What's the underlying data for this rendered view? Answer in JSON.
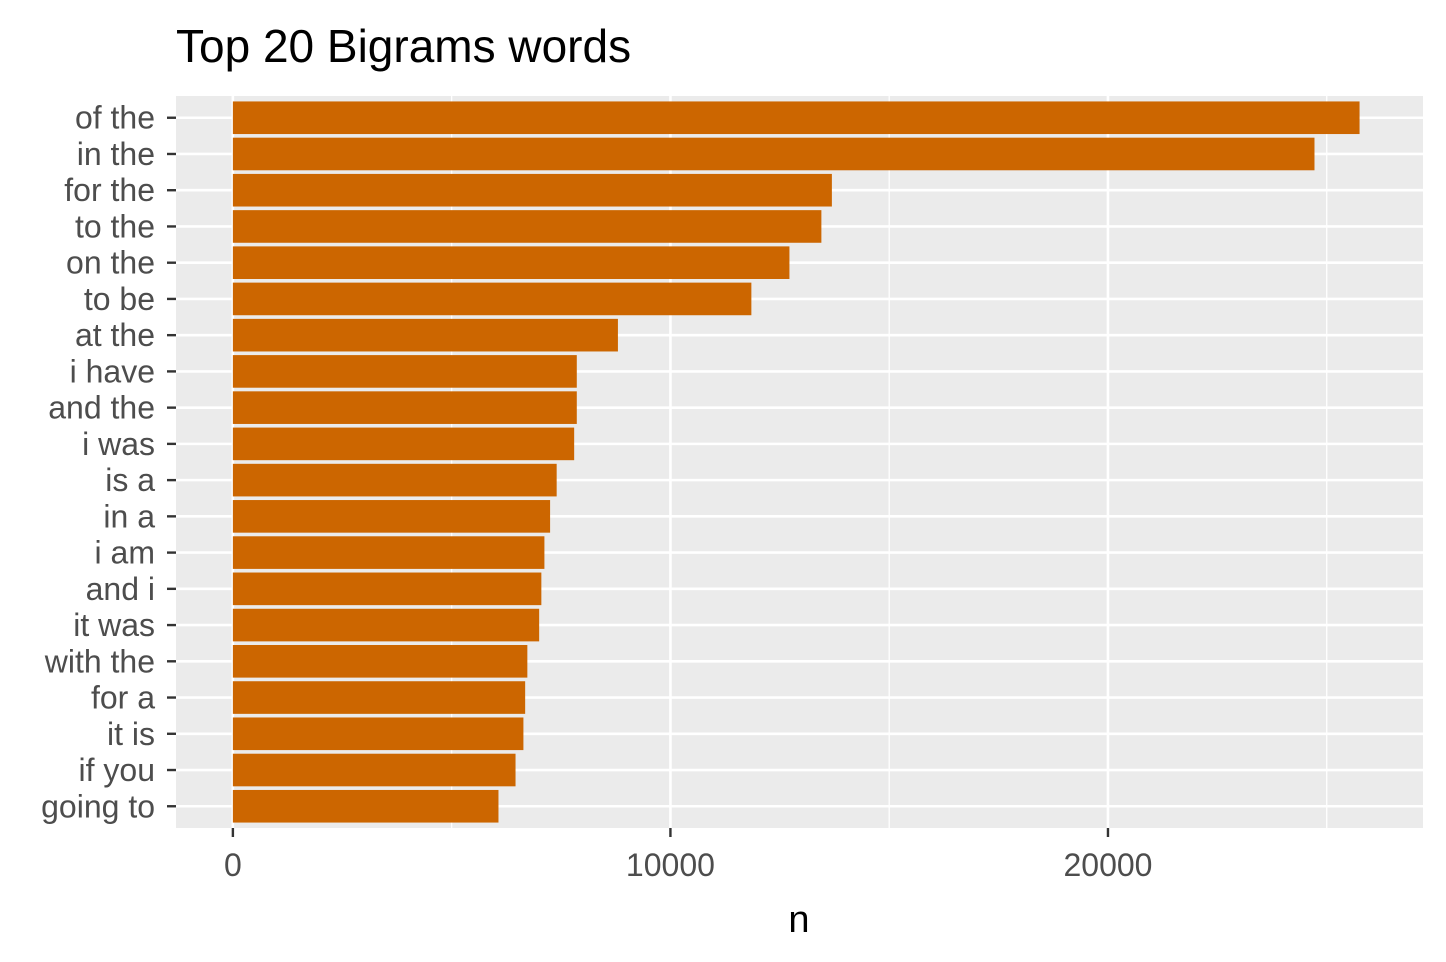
{
  "chart_data": {
    "type": "bar",
    "orientation": "horizontal",
    "title": "Top 20 Bigrams words",
    "xlabel": "n",
    "ylabel": "",
    "categories": [
      "of the",
      "in the",
      "for the",
      "to the",
      "on the",
      "to be",
      "at the",
      "i have",
      "and the",
      "i was",
      "is a",
      "in a",
      "i am",
      "and i",
      "it was",
      "with the",
      "for a",
      "it is",
      "if you",
      "going to"
    ],
    "values": [
      25750,
      24720,
      13690,
      13450,
      12720,
      11850,
      8800,
      7860,
      7860,
      7800,
      7400,
      7250,
      7120,
      7050,
      7000,
      6730,
      6680,
      6640,
      6460,
      6070
    ],
    "xlim": [
      -1300,
      27200
    ],
    "x_ticks": [
      0,
      10000,
      20000
    ],
    "x_tick_labels": [
      "0",
      "10000",
      "20000"
    ],
    "bar_color": "#CC6600",
    "panel_color": "#EBEBEB",
    "grid": true,
    "legend": "none"
  }
}
